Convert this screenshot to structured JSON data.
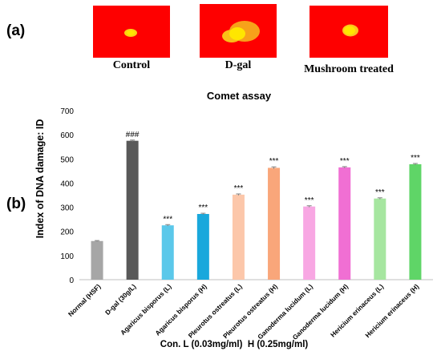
{
  "panels": {
    "a_label": "(a)",
    "b_label": "(b)"
  },
  "comet_images": [
    {
      "caption": "Control"
    },
    {
      "caption": "D-gal"
    },
    {
      "caption": "Mushroom treated"
    }
  ],
  "colors": {
    "comet_background": "#fe0000",
    "comet_core": "#ffe600"
  },
  "chart_data": {
    "type": "bar",
    "title": "Comet assay",
    "ylabel": "Index of DNA damage: ID",
    "xlabel": "Con. L (0.03mg/ml)  H (0.25mg/ml)",
    "ylim": [
      0,
      700
    ],
    "yticks": [
      0,
      100,
      200,
      300,
      400,
      500,
      600,
      700
    ],
    "grid": false,
    "categories": [
      "Normal (HSF)",
      "D-gal (30g/L)",
      "Agaricus bisporus (L)",
      "Agaricus bisporus (H)",
      "Pleurotus ostreatus (L)",
      "Pleurotus ostreatus (H)",
      "Ganoderma lucidum (L)",
      "Ganoderma lucidum (H)",
      "Hericium erinaceus (L)",
      "Hericium erinaceus (H)"
    ],
    "values": [
      160,
      575,
      225,
      272,
      352,
      463,
      303,
      465,
      336,
      478
    ],
    "errors": [
      2,
      3,
      3,
      3,
      3,
      4,
      3,
      3,
      3,
      3
    ],
    "annotations": [
      "",
      "###",
      "***",
      "***",
      "***",
      "***",
      "***",
      "***",
      "***",
      "***"
    ],
    "colors": [
      "#a6a6a6",
      "#595959",
      "#5bc8ea",
      "#19a8dc",
      "#fcc7aa",
      "#f9a67a",
      "#f8a7e3",
      "#f06fd3",
      "#a6e6a0",
      "#5fd567"
    ]
  }
}
